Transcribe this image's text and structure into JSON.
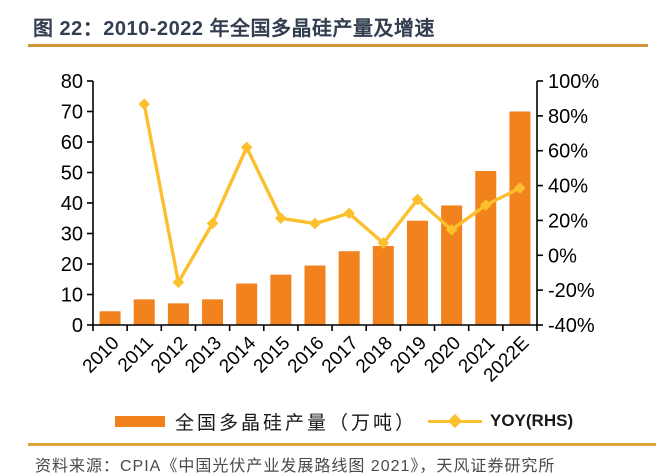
{
  "header": {
    "title": "图 22：2010-2022 年全国多晶硅产量及增速"
  },
  "colors": {
    "bar": "#F2821D",
    "line": "#FCBF2D",
    "axis": "#000000",
    "title_text": "#333F50",
    "title_rule": "#C9963B",
    "footer_rule": "#DFA33C",
    "source_text": "#4a4a4a"
  },
  "chart_data": {
    "type": "bar",
    "subtype": "bar-line-combo",
    "categories": [
      "2010",
      "2011",
      "2012",
      "2013",
      "2014",
      "2015",
      "2016",
      "2017",
      "2018",
      "2019",
      "2020",
      "2021",
      "2022E"
    ],
    "series": [
      {
        "name": "全国多晶硅产量（万吨）",
        "type": "bar",
        "axis": "left",
        "values": [
          4.5,
          8.4,
          7.1,
          8.4,
          13.6,
          16.5,
          19.5,
          24.2,
          25.9,
          34.2,
          39.2,
          50.5,
          70.0
        ]
      },
      {
        "name": "YOY(RHS)",
        "type": "line",
        "axis": "right",
        "values": [
          null,
          86.7,
          -15.5,
          18.3,
          61.9,
          21.3,
          18.2,
          24.1,
          7.0,
          32.0,
          14.6,
          28.8,
          38.6
        ]
      }
    ],
    "left_axis": {
      "min": 0,
      "max": 80,
      "step": 10,
      "tick_labels": [
        "0",
        "10",
        "20",
        "30",
        "40",
        "50",
        "60",
        "70",
        "80"
      ]
    },
    "right_axis": {
      "min": -40,
      "max": 100,
      "step": 20,
      "tick_labels": [
        "-40%",
        "-20%",
        "0%",
        "20%",
        "40%",
        "60%",
        "80%",
        "100%"
      ]
    },
    "grid": false,
    "legend_position": "bottom",
    "title": "图 22：2010-2022 年全国多晶硅产量及增速"
  },
  "legend": {
    "bar_label": "全国多晶硅产量（万吨）",
    "line_label": "YOY(RHS)"
  },
  "footer": {
    "source": "资料来源：CPIA《中国光伏产业发展路线图 2021》，天风证券研究所"
  }
}
